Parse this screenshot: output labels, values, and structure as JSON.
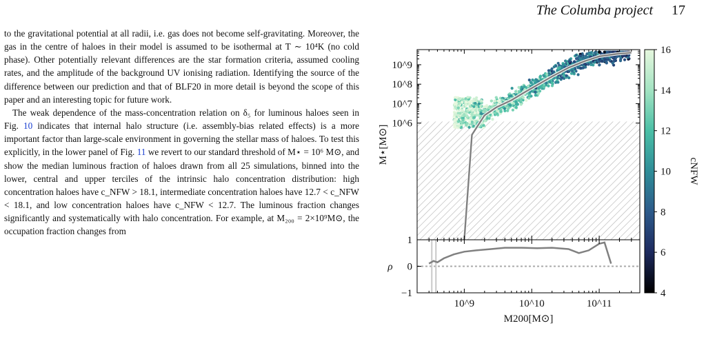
{
  "header": {
    "title": "The Columba project",
    "page": "17"
  },
  "text": {
    "p1": "to the gravitational potential at all radii, i.e. gas does not become self-gravitating. Moreover, the gas in the centre of haloes in their model is assumed to be isothermal at T ∼ 10⁴K (no cold phase). Other potentially relevant differences are the star formation criteria, assumed cooling rates, and the amplitude of the background UV ionising radiation. Identifying the source of the difference between our prediction and that of BLF20 in more detail is beyond the scope of this paper and an interesting topic for future work.",
    "p2a": "The weak dependence of the mass-concentration relation on δ₅ for luminous haloes seen in Fig. ",
    "p2_ref1": "10",
    "p2b": " indicates that internal halo structure (i.e. assembly-bias related effects) is a more important factor than large-scale environment in governing the stellar mass of haloes. To test this explicitly, in the lower panel of Fig. ",
    "p2_ref2": "11",
    "p2c": " we revert to our standard threshold of M⋆ = 10⁶ M⊙, and show the median luminous fraction of haloes drawn from all 25 simulations, binned into the lower, central and upper terciles of the intrinsic halo concentration distribution: high concentration haloes have c_NFW > 18.1, intermediate concentration haloes have 12.7 < c_NFW < 18.1, and low concentration haloes have c_NFW < 12.7. The luminous fraction changes significantly and systematically with halo concentration. For example, at M₂₀₀ = 2×10⁹M⊙, the occupation fraction changes from"
  },
  "chart_data": [
    {
      "type": "scatter",
      "xlabel": "M200[M⊙]",
      "ylabel": "M⋆[M⊙]",
      "x_scale": "log",
      "y_scale": "log",
      "xlim": [
        200000000,
        400000000000
      ],
      "ylim": [
        1,
        6000000000
      ],
      "x_tick_labels": [
        "10^9",
        "10^10",
        "10^11"
      ],
      "y_tick_labels": [
        "1",
        "10^6",
        "10^7",
        "10^8",
        "10^9"
      ],
      "median_line": {
        "x": [
          1000000000,
          1300000000,
          2000000000,
          3000000000,
          5000000000,
          8000000000,
          12000000000,
          20000000000,
          35000000000,
          60000000000,
          100000000000,
          180000000000,
          300000000000
        ],
        "y": [
          1,
          250000,
          2500000,
          6500000,
          15000000,
          40000000,
          90000000,
          250000000,
          700000000,
          1500000000,
          2700000000,
          3600000000,
          4200000000
        ]
      },
      "hatched_region": {
        "y_max": 1200000,
        "note": "below M⋆ threshold"
      },
      "colorbar": {
        "label": "cNFW",
        "min": 4,
        "max": 16,
        "ticks": [
          "4",
          "6",
          "8",
          "10",
          "12",
          "14",
          "16"
        ],
        "colormap": [
          "#000000",
          "#1d2a5e",
          "#2d5a8a",
          "#2f8d98",
          "#4bbfa6",
          "#a3e3c2",
          "#e6f7de"
        ]
      },
      "scatter_color_trend": "low-mass luminous haloes have high cNFW (light), high-mass haloes low cNFW (dark)"
    },
    {
      "type": "line",
      "ylabel": "ρ",
      "ylim": [
        -1,
        1
      ],
      "y_tick_labels": [
        "−1",
        "0"
      ],
      "x": [
        300000000,
        350000000,
        400000000,
        500000000,
        700000000,
        1000000000,
        1500000000,
        2500000000,
        4000000000,
        7000000000,
        12000000000,
        20000000000,
        35000000000,
        50000000000,
        70000000000,
        100000000000,
        120000000000,
        150000000000
      ],
      "y": [
        0.1,
        0.2,
        0.15,
        0.3,
        0.45,
        0.55,
        0.6,
        0.65,
        0.7,
        0.7,
        0.68,
        0.7,
        0.65,
        0.5,
        0.6,
        0.85,
        0.9,
        0.1
      ],
      "reference_line_y": 0,
      "vertical_markers_x": [
        330000000,
        380000000
      ]
    }
  ]
}
